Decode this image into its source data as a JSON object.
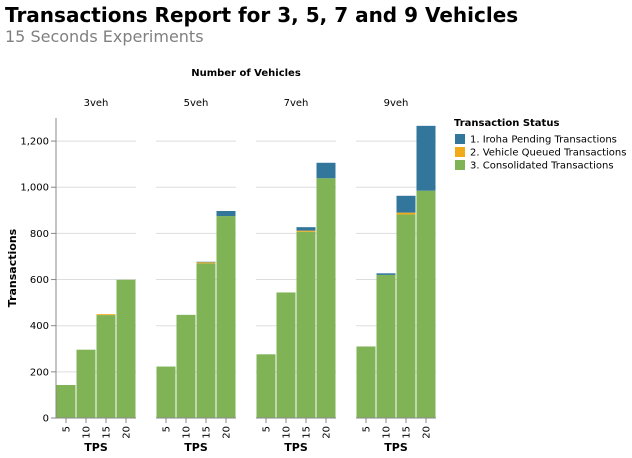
{
  "title": "Transactions Report for 3, 5, 7 and 9 Vehicles",
  "subtitle": "15 Seconds Experiments",
  "chart_data": {
    "type": "bar",
    "stacked": true,
    "facet_title": "Number of Vehicles",
    "facets": [
      "3veh",
      "5veh",
      "7veh",
      "9veh"
    ],
    "categories": [
      "5",
      "10",
      "15",
      "20"
    ],
    "xlabel": "TPS",
    "ylabel": "Transactions",
    "ylim": [
      0,
      1300
    ],
    "yticks": [
      0,
      200,
      400,
      600,
      800,
      1000,
      1200
    ],
    "ytick_labels": [
      "0",
      "200",
      "400",
      "600",
      "800",
      "1,000",
      "1,200"
    ],
    "grid": true,
    "legend": {
      "title": "Transaction Status",
      "position": "right"
    },
    "series": [
      {
        "name": "3. Consolidated Transactions",
        "color": "#7fb356",
        "values": [
          [
            143,
            296,
            446,
            599
          ],
          [
            223,
            447,
            670,
            875
          ],
          [
            276,
            544,
            807,
            1039
          ],
          [
            310,
            620,
            882,
            985
          ]
        ]
      },
      {
        "name": "2. Vehicle Queued Transactions",
        "color": "#f1ab1a",
        "values": [
          [
            0,
            0,
            4,
            0
          ],
          [
            0,
            0,
            5,
            0
          ],
          [
            0,
            0,
            5,
            0
          ],
          [
            0,
            0,
            8,
            0
          ]
        ]
      },
      {
        "name": "1. Iroha Pending Transactions",
        "color": "#33769c",
        "values": [
          [
            0,
            0,
            0,
            0
          ],
          [
            0,
            0,
            2,
            22
          ],
          [
            0,
            0,
            15,
            67
          ],
          [
            0,
            7,
            73,
            281
          ]
        ]
      }
    ],
    "legend_order": [
      "1. Iroha Pending Transactions",
      "2. Vehicle Queued Transactions",
      "3. Consolidated Transactions"
    ]
  }
}
